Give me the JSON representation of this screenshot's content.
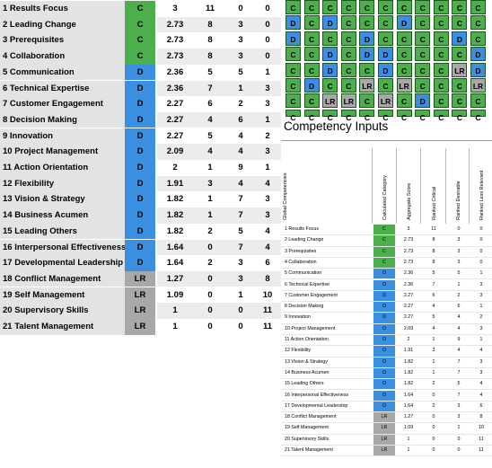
{
  "competencies": [
    {
      "name": "1 Results Focus",
      "cat": "C",
      "score": "3",
      "critical": "11",
      "desirable": "0",
      "less": "0"
    },
    {
      "name": "2 Leading Change",
      "cat": "C",
      "score": "2.73",
      "critical": "8",
      "desirable": "3",
      "less": "0"
    },
    {
      "name": "3 Prerequisites",
      "cat": "C",
      "score": "2.73",
      "critical": "8",
      "desirable": "3",
      "less": "0"
    },
    {
      "name": "4 Collaboration",
      "cat": "C",
      "score": "2.73",
      "critical": "8",
      "desirable": "3",
      "less": "0"
    },
    {
      "name": "5 Communication",
      "cat": "D",
      "score": "2.36",
      "critical": "5",
      "desirable": "5",
      "less": "1"
    },
    {
      "name": "6 Technical Expertise",
      "cat": "D",
      "score": "2.36",
      "critical": "7",
      "desirable": "1",
      "less": "3"
    },
    {
      "name": "7 Customer Engagement",
      "cat": "D",
      "score": "2.27",
      "critical": "6",
      "desirable": "2",
      "less": "3"
    },
    {
      "name": "8 Decision Making",
      "cat": "D",
      "score": "2.27",
      "critical": "4",
      "desirable": "6",
      "less": "1"
    },
    {
      "name": "9 Innovation",
      "cat": "D",
      "score": "2.27",
      "critical": "5",
      "desirable": "4",
      "less": "2"
    },
    {
      "name": "10 Project Management",
      "cat": "D",
      "score": "2.09",
      "critical": "4",
      "desirable": "4",
      "less": "3"
    },
    {
      "name": "11 Action Orientation",
      "cat": "D",
      "score": "2",
      "critical": "1",
      "desirable": "9",
      "less": "1"
    },
    {
      "name": "12 Flexibility",
      "cat": "D",
      "score": "1.91",
      "critical": "3",
      "desirable": "4",
      "less": "4"
    },
    {
      "name": "13 Vision & Strategy",
      "cat": "D",
      "score": "1.82",
      "critical": "1",
      "desirable": "7",
      "less": "3"
    },
    {
      "name": "14 Business Acumen",
      "cat": "D",
      "score": "1.82",
      "critical": "1",
      "desirable": "7",
      "less": "3"
    },
    {
      "name": "15 Leading Others",
      "cat": "D",
      "score": "1.82",
      "critical": "2",
      "desirable": "5",
      "less": "4"
    },
    {
      "name": "16 Interpersonal Effectiveness",
      "cat": "D",
      "score": "1.64",
      "critical": "0",
      "desirable": "7",
      "less": "4"
    },
    {
      "name": "17 Developmental Leadership",
      "cat": "D",
      "score": "1.64",
      "critical": "2",
      "desirable": "3",
      "less": "6"
    },
    {
      "name": "18 Conflict Management",
      "cat": "LR",
      "score": "1.27",
      "critical": "0",
      "desirable": "3",
      "less": "8"
    },
    {
      "name": "19 Self Management",
      "cat": "LR",
      "score": "1.09",
      "critical": "0",
      "desirable": "1",
      "less": "10"
    },
    {
      "name": "20 Supervisory Skills",
      "cat": "LR",
      "score": "1",
      "critical": "0",
      "desirable": "0",
      "less": "11"
    },
    {
      "name": "21 Talent Management",
      "cat": "LR",
      "score": "1",
      "critical": "0",
      "desirable": "0",
      "less": "11"
    }
  ],
  "rating_grid": [
    [
      "C",
      "C",
      "C",
      "C",
      "C",
      "C",
      "C",
      "C",
      "C",
      "C",
      "C"
    ],
    [
      "D",
      "C",
      "D",
      "C",
      "C",
      "C",
      "D",
      "C",
      "C",
      "C",
      "C"
    ],
    [
      "D",
      "C",
      "C",
      "C",
      "D",
      "C",
      "C",
      "C",
      "C",
      "D",
      "C"
    ],
    [
      "C",
      "C",
      "D",
      "C",
      "D",
      "D",
      "C",
      "C",
      "C",
      "C",
      "D"
    ],
    [
      "C",
      "C",
      "D",
      "C",
      "C",
      "D",
      "C",
      "C",
      "C",
      "LR",
      "D"
    ],
    [
      "C",
      "D",
      "C",
      "C",
      "LR",
      "C",
      "LR",
      "C",
      "C",
      "C",
      "LR"
    ],
    [
      "C",
      "C",
      "LR",
      "LR",
      "C",
      "LR",
      "C",
      "D",
      "C",
      "C",
      "C"
    ],
    [
      "C",
      "C",
      "C",
      "C",
      "C",
      "C",
      "C",
      "C",
      "C",
      "C",
      "C"
    ]
  ],
  "panel": {
    "title": "Competency Inputs",
    "corner_label": "Global Competencies",
    "headers": [
      "Calculated Category",
      "Aggregate Score",
      "Ranked Critical",
      "Ranked Desirable",
      "Ranked Less Relevant"
    ]
  },
  "colors": {
    "C": "#4caf4c",
    "D": "#3b8fe0",
    "LR": "#a8a8a8"
  }
}
